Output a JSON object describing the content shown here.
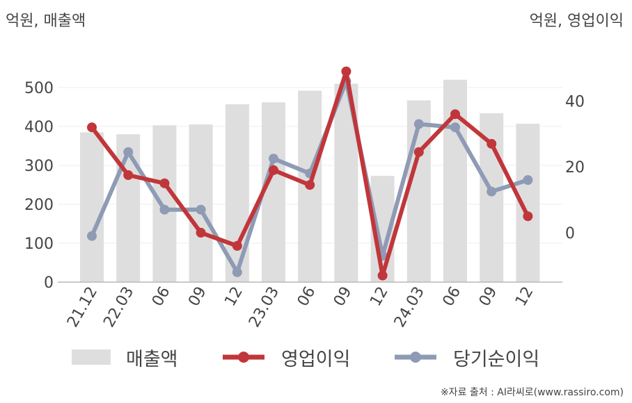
{
  "left_unit": "억원, 매출액",
  "right_unit": "억원, 영업이익",
  "source": "※자료 출처 : AI라씨로(www.rassiro.com)",
  "legend": {
    "revenue": "매출액",
    "operating_profit": "영업이익",
    "net_profit": "당기순이익"
  },
  "colors": {
    "revenue": "#dedede",
    "operating_profit": "#c1363a",
    "net_profit": "#8f9bb5"
  },
  "chart_data": {
    "type": "bar",
    "categories": [
      "21.12",
      "22.03",
      "06",
      "09",
      "12",
      "23.03",
      "06",
      "09",
      "12",
      "24.03",
      "06",
      "09",
      "12"
    ],
    "left_axis": {
      "ylim": [
        0,
        550
      ],
      "ticks": [
        0,
        100,
        200,
        300,
        400,
        500
      ]
    },
    "right_axis": {
      "ylim": [
        -15,
        50
      ],
      "ticks": [
        0,
        20,
        40
      ]
    },
    "series": [
      {
        "name": "매출액",
        "type": "bar",
        "axis": "left",
        "values": [
          385,
          380,
          403,
          405,
          457,
          462,
          492,
          510,
          273,
          467,
          520,
          434,
          407
        ]
      },
      {
        "name": "영업이익",
        "type": "line",
        "axis": "right",
        "values": [
          32,
          17.5,
          15,
          0,
          -4,
          19,
          14.5,
          49,
          -13,
          24.5,
          36,
          27,
          5
        ]
      },
      {
        "name": "당기순이익",
        "type": "line",
        "axis": "right",
        "values": [
          -1,
          24.5,
          7,
          7,
          -12,
          22.5,
          18,
          46,
          -7,
          33,
          32,
          12.5,
          16
        ]
      }
    ],
    "grid": true
  }
}
